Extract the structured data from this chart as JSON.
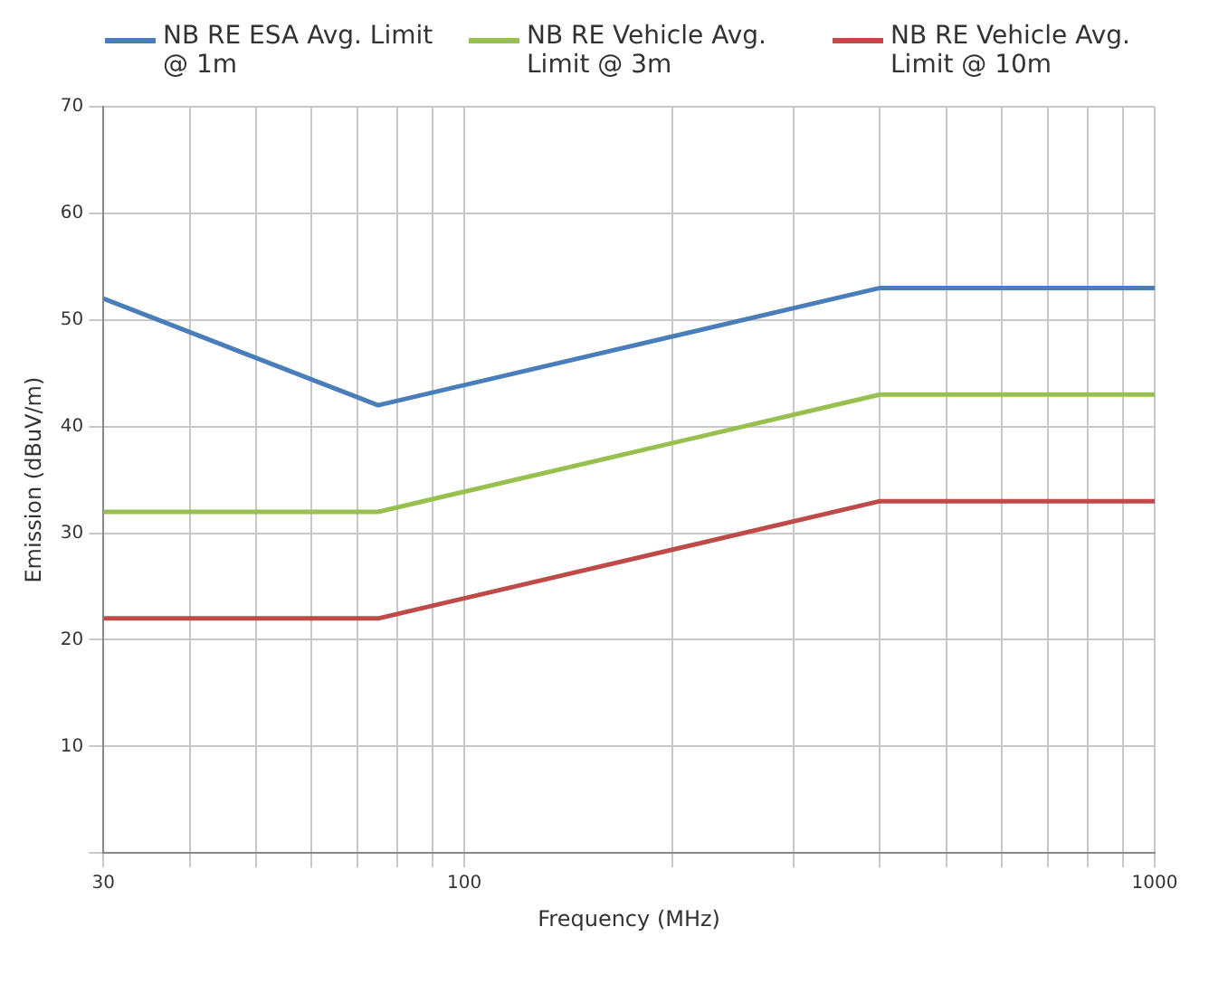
{
  "chart_data": {
    "type": "line",
    "xlabel": "Frequency (MHz)",
    "ylabel": "Emission (dBuV/m)",
    "x": [
      30,
      75,
      400,
      1000
    ],
    "series": [
      {
        "name": "NB RE ESA Avg. Limit @ 1m",
        "color": "#4a7ebb",
        "values": [
          52,
          42,
          53,
          53
        ]
      },
      {
        "name": "NB RE Vehicle Avg. Limit @ 3m",
        "color": "#98c04f",
        "values": [
          32,
          32,
          43,
          43
        ]
      },
      {
        "name": "NB RE Vehicle Avg. Limit @ 10m",
        "color": "#be4b48",
        "values": [
          22,
          22,
          33,
          33
        ]
      }
    ],
    "log": "x",
    "xlim": [
      30,
      1000
    ],
    "ylim": [
      0,
      70
    ],
    "xticks": [
      30,
      {
        "value": 40,
        "label": null
      },
      {
        "value": 50,
        "label": null
      },
      {
        "value": 60,
        "label": null
      },
      {
        "value": 70,
        "label": null
      },
      {
        "value": 80,
        "label": null
      },
      {
        "value": 90,
        "label": null
      },
      100,
      {
        "value": 200,
        "label": null
      },
      {
        "value": 300,
        "label": null
      },
      {
        "value": 400,
        "label": null
      },
      {
        "value": 500,
        "label": null
      },
      {
        "value": 600,
        "label": null
      },
      {
        "value": 700,
        "label": null
      },
      {
        "value": 800,
        "label": null
      },
      {
        "value": 900,
        "label": null
      },
      1000
    ],
    "yticks": [
      {
        "value": 0,
        "label": null
      },
      10,
      20,
      30,
      40,
      50,
      60,
      70
    ],
    "grid": true,
    "legend": "top",
    "marker": "none",
    "line_style": "solid"
  }
}
